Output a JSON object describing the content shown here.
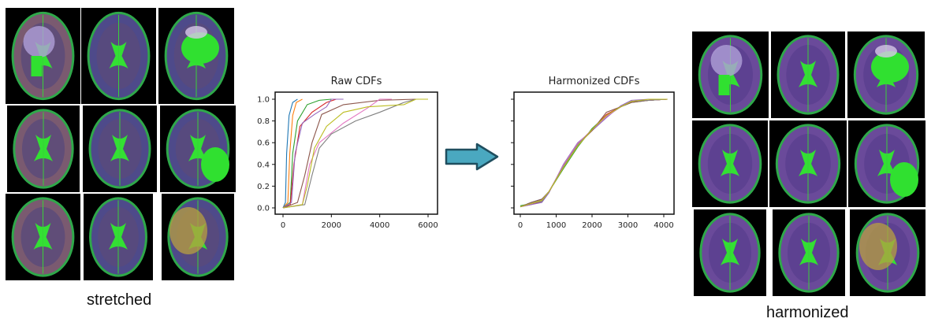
{
  "left_panel": {
    "caption": "stretched"
  },
  "right_panel": {
    "caption": "harmonized"
  },
  "arrow": {
    "icon": "right-arrow-icon",
    "color": "#4aa8c0"
  },
  "chart_data": [
    {
      "type": "line",
      "title": "Raw CDFs",
      "xlim": [
        0,
        6000
      ],
      "ylim": [
        0,
        1.0
      ],
      "xticks": [
        "0",
        "2000",
        "4000",
        "6000"
      ],
      "yticks": [
        "0.0",
        "0.2",
        "0.4",
        "0.6",
        "0.8",
        "1.0"
      ],
      "grid": false,
      "series": [
        {
          "color": "#1f77b4",
          "points": [
            [
              0,
              0
            ],
            [
              100,
              0.05
            ],
            [
              150,
              0.5
            ],
            [
              250,
              0.85
            ],
            [
              400,
              0.97
            ],
            [
              600,
              1.0
            ]
          ]
        },
        {
          "color": "#ff7f0e",
          "points": [
            [
              0,
              0
            ],
            [
              200,
              0.05
            ],
            [
              280,
              0.5
            ],
            [
              400,
              0.85
            ],
            [
              550,
              0.97
            ],
            [
              800,
              1.0
            ]
          ]
        },
        {
          "color": "#2ca02c",
          "points": [
            [
              0,
              0
            ],
            [
              300,
              0.05
            ],
            [
              400,
              0.5
            ],
            [
              600,
              0.8
            ],
            [
              1000,
              0.95
            ],
            [
              1500,
              0.99
            ],
            [
              2000,
              1.0
            ]
          ]
        },
        {
          "color": "#d62728",
          "points": [
            [
              0,
              0
            ],
            [
              300,
              0.03
            ],
            [
              450,
              0.4
            ],
            [
              700,
              0.75
            ],
            [
              1200,
              0.88
            ],
            [
              1800,
              0.97
            ],
            [
              2200,
              1.0
            ]
          ]
        },
        {
          "color": "#9467bd",
          "points": [
            [
              0,
              0
            ],
            [
              350,
              0.05
            ],
            [
              500,
              0.5
            ],
            [
              800,
              0.78
            ],
            [
              1300,
              0.86
            ],
            [
              1800,
              0.93
            ],
            [
              2000,
              1.0
            ],
            [
              2500,
              1.0
            ]
          ]
        },
        {
          "color": "#8c564b",
          "points": [
            [
              0,
              0
            ],
            [
              600,
              0.05
            ],
            [
              900,
              0.3
            ],
            [
              1200,
              0.6
            ],
            [
              1600,
              0.86
            ],
            [
              2500,
              0.95
            ],
            [
              4000,
              0.99
            ],
            [
              5500,
              1.0
            ]
          ]
        },
        {
          "color": "#e377c2",
          "points": [
            [
              0,
              0
            ],
            [
              800,
              0.03
            ],
            [
              1100,
              0.4
            ],
            [
              1500,
              0.6
            ],
            [
              2500,
              0.78
            ],
            [
              3500,
              0.92
            ],
            [
              4000,
              1.0
            ],
            [
              4500,
              1.0
            ]
          ]
        },
        {
          "color": "#7f7f7f",
          "points": [
            [
              0,
              0
            ],
            [
              900,
              0.03
            ],
            [
              1200,
              0.3
            ],
            [
              1500,
              0.55
            ],
            [
              2000,
              0.68
            ],
            [
              3000,
              0.8
            ],
            [
              4000,
              0.88
            ],
            [
              5000,
              0.97
            ],
            [
              5500,
              1.0
            ]
          ]
        },
        {
          "color": "#bcbd22",
          "points": [
            [
              0,
              0
            ],
            [
              800,
              0.03
            ],
            [
              1000,
              0.2
            ],
            [
              1300,
              0.55
            ],
            [
              1800,
              0.75
            ],
            [
              2500,
              0.88
            ],
            [
              3500,
              0.93
            ],
            [
              5000,
              0.95
            ],
            [
              5500,
              1.0
            ],
            [
              6000,
              1.0
            ]
          ]
        }
      ]
    },
    {
      "type": "line",
      "title": "Harmonized CDFs",
      "xlim": [
        0,
        4000
      ],
      "ylim": [
        0,
        1.0
      ],
      "xticks": [
        "0",
        "1000",
        "2000",
        "3000",
        "4000"
      ],
      "yticks": [],
      "grid": false,
      "x": [
        0,
        300,
        600,
        800,
        1200,
        1600,
        2000,
        2400,
        2800,
        3100,
        3600,
        4100
      ],
      "series": [
        {
          "color": "#1f77b4",
          "values": [
            0.01,
            0.05,
            0.08,
            0.15,
            0.38,
            0.58,
            0.72,
            0.84,
            0.93,
            0.98,
            0.99,
            1.0
          ]
        },
        {
          "color": "#ff7f0e",
          "values": [
            0.01,
            0.04,
            0.07,
            0.15,
            0.37,
            0.57,
            0.72,
            0.85,
            0.93,
            0.98,
            0.99,
            1.0
          ]
        },
        {
          "color": "#2ca02c",
          "values": [
            0.02,
            0.04,
            0.07,
            0.15,
            0.36,
            0.56,
            0.73,
            0.85,
            0.93,
            0.97,
            0.99,
            1.0
          ]
        },
        {
          "color": "#d62728",
          "values": [
            0.01,
            0.03,
            0.06,
            0.15,
            0.38,
            0.59,
            0.72,
            0.86,
            0.93,
            0.98,
            0.99,
            1.0
          ]
        },
        {
          "color": "#9467bd",
          "values": [
            0.01,
            0.03,
            0.05,
            0.14,
            0.4,
            0.6,
            0.71,
            0.83,
            0.94,
            0.99,
            1.0,
            1.0
          ]
        },
        {
          "color": "#8c564b",
          "values": [
            0.01,
            0.05,
            0.08,
            0.15,
            0.37,
            0.58,
            0.71,
            0.88,
            0.93,
            0.97,
            0.99,
            1.0
          ]
        },
        {
          "color": "#e377c2",
          "values": [
            0.01,
            0.04,
            0.07,
            0.15,
            0.39,
            0.59,
            0.72,
            0.84,
            0.93,
            0.98,
            0.99,
            1.0
          ]
        },
        {
          "color": "#7f7f7f",
          "values": [
            0.01,
            0.04,
            0.06,
            0.15,
            0.38,
            0.58,
            0.72,
            0.85,
            0.93,
            0.98,
            0.99,
            1.0
          ]
        },
        {
          "color": "#bcbd22",
          "values": [
            0.01,
            0.04,
            0.07,
            0.15,
            0.37,
            0.57,
            0.72,
            0.85,
            0.93,
            0.98,
            1.0,
            1.0
          ]
        }
      ]
    }
  ]
}
